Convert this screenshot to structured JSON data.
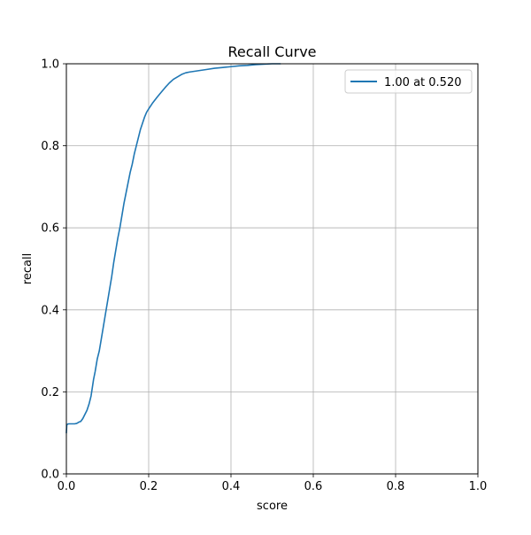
{
  "chart_data": {
    "type": "line",
    "title": "Recall Curve",
    "xlabel": "score",
    "ylabel": "recall",
    "xlim": [
      0.0,
      1.0
    ],
    "ylim": [
      0.0,
      1.0
    ],
    "xticks": [
      "0.0",
      "0.2",
      "0.4",
      "0.6",
      "0.8",
      "1.0"
    ],
    "yticks": [
      "0.0",
      "0.2",
      "0.4",
      "0.6",
      "0.8",
      "1.0"
    ],
    "grid": true,
    "legend_position": "top-right",
    "series": [
      {
        "name": "1.00 at 0.520",
        "color": "#1f77b4",
        "x": [
          0.0,
          0.001,
          0.005,
          0.01,
          0.02,
          0.025,
          0.03,
          0.035,
          0.04,
          0.045,
          0.05,
          0.055,
          0.06,
          0.063,
          0.066,
          0.07,
          0.075,
          0.08,
          0.085,
          0.09,
          0.095,
          0.1,
          0.105,
          0.11,
          0.115,
          0.12,
          0.125,
          0.13,
          0.135,
          0.14,
          0.145,
          0.15,
          0.155,
          0.16,
          0.165,
          0.17,
          0.175,
          0.18,
          0.185,
          0.19,
          0.195,
          0.2,
          0.21,
          0.22,
          0.23,
          0.24,
          0.25,
          0.26,
          0.27,
          0.28,
          0.29,
          0.3,
          0.32,
          0.34,
          0.36,
          0.38,
          0.4,
          0.42,
          0.44,
          0.46,
          0.48,
          0.5,
          0.52
        ],
        "y": [
          0.1,
          0.12,
          0.122,
          0.122,
          0.122,
          0.123,
          0.126,
          0.128,
          0.135,
          0.145,
          0.155,
          0.17,
          0.19,
          0.21,
          0.23,
          0.25,
          0.28,
          0.3,
          0.33,
          0.36,
          0.39,
          0.42,
          0.45,
          0.48,
          0.515,
          0.545,
          0.575,
          0.6,
          0.63,
          0.66,
          0.685,
          0.71,
          0.735,
          0.755,
          0.78,
          0.8,
          0.82,
          0.84,
          0.855,
          0.87,
          0.882,
          0.89,
          0.905,
          0.918,
          0.93,
          0.942,
          0.953,
          0.962,
          0.968,
          0.974,
          0.978,
          0.98,
          0.983,
          0.986,
          0.989,
          0.991,
          0.993,
          0.995,
          0.996,
          0.998,
          0.999,
          1.0,
          1.0
        ]
      }
    ]
  }
}
